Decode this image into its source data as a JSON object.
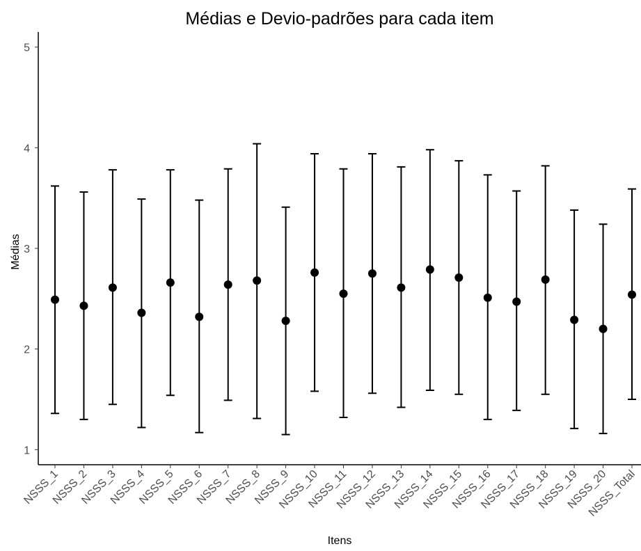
{
  "chart_data": {
    "type": "scatter",
    "title": "Médias e Devio-padrões para cada item",
    "xlabel": "Itens",
    "ylabel": "Médias",
    "ylim": [
      0.85,
      5.15
    ],
    "yticks": [
      1,
      2,
      3,
      4,
      5
    ],
    "grid": false,
    "legend": "none",
    "categories": [
      "NSSS_1",
      "NSSS_2",
      "NSSS_3",
      "NSSS_4",
      "NSSS_5",
      "NSSS_6",
      "NSSS_7",
      "NSSS_8",
      "NSSS_9",
      "NSSS_10",
      "NSSS_11",
      "NSSS_12",
      "NSSS_13",
      "NSSS_14",
      "NSSS_15",
      "NSSS_16",
      "NSSS_17",
      "NSSS_18",
      "NSSS_19",
      "NSSS_20",
      "NSSS_Total"
    ],
    "series": [
      {
        "mean": [
          2.49,
          2.43,
          2.61,
          2.36,
          2.66,
          2.32,
          2.64,
          2.68,
          2.28,
          2.76,
          2.55,
          2.75,
          2.61,
          2.79,
          2.71,
          2.51,
          2.47,
          2.69,
          2.29,
          2.2,
          2.54
        ],
        "lower": [
          1.36,
          1.3,
          1.45,
          1.22,
          1.54,
          1.17,
          1.49,
          1.31,
          1.15,
          1.58,
          1.32,
          1.56,
          1.42,
          1.59,
          1.55,
          1.3,
          1.39,
          1.55,
          1.21,
          1.16,
          1.5
        ],
        "upper": [
          3.62,
          3.56,
          3.78,
          3.49,
          3.78,
          3.48,
          3.79,
          4.04,
          3.41,
          3.94,
          3.79,
          3.94,
          3.81,
          3.98,
          3.87,
          3.73,
          3.57,
          3.82,
          3.38,
          3.24,
          3.59
        ]
      }
    ]
  }
}
